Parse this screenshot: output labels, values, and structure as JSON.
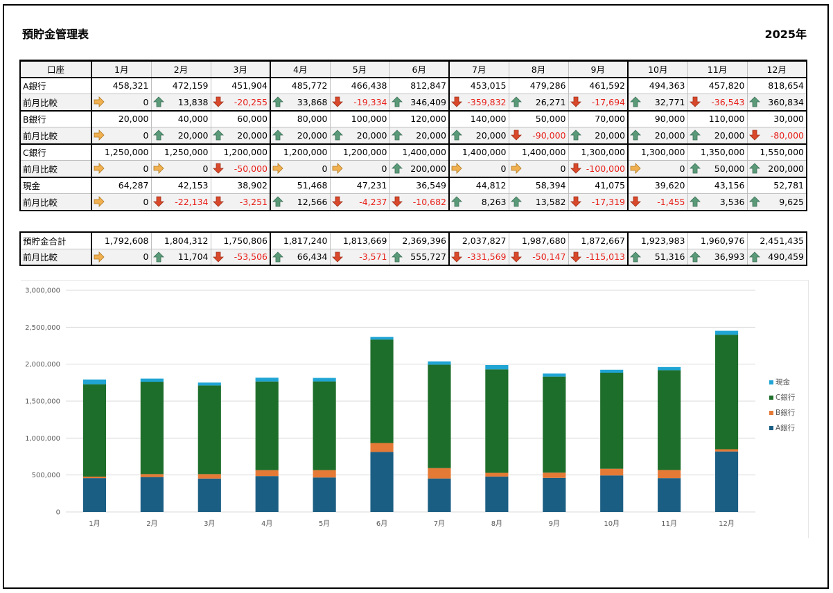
{
  "title": "預貯金管理表",
  "year": "2025年",
  "header": {
    "account_col": "口座",
    "months": [
      "1月",
      "2月",
      "3月",
      "4月",
      "5月",
      "6月",
      "7月",
      "8月",
      "9月",
      "10月",
      "11月",
      "12月"
    ]
  },
  "diff_label": "前月比較",
  "accounts": [
    {
      "name": "A銀行",
      "values": [
        "458,321",
        "472,159",
        "451,904",
        "485,772",
        "466,438",
        "812,847",
        "453,015",
        "479,286",
        "461,592",
        "494,363",
        "457,820",
        "818,654"
      ],
      "diffs": [
        "0",
        "13,838",
        "-20,255",
        "33,868",
        "-19,334",
        "346,409",
        "-359,832",
        "26,271",
        "-17,694",
        "32,771",
        "-36,543",
        "360,834"
      ],
      "dirs": [
        "flat",
        "up",
        "down",
        "up",
        "down",
        "up",
        "down",
        "up",
        "down",
        "up",
        "down",
        "up"
      ]
    },
    {
      "name": "B銀行",
      "values": [
        "20,000",
        "40,000",
        "60,000",
        "80,000",
        "100,000",
        "120,000",
        "140,000",
        "50,000",
        "70,000",
        "90,000",
        "110,000",
        "30,000"
      ],
      "diffs": [
        "0",
        "20,000",
        "20,000",
        "20,000",
        "20,000",
        "20,000",
        "20,000",
        "-90,000",
        "20,000",
        "20,000",
        "20,000",
        "-80,000"
      ],
      "dirs": [
        "flat",
        "up",
        "up",
        "up",
        "up",
        "up",
        "up",
        "down",
        "up",
        "up",
        "up",
        "down"
      ]
    },
    {
      "name": "C銀行",
      "values": [
        "1,250,000",
        "1,250,000",
        "1,200,000",
        "1,200,000",
        "1,200,000",
        "1,400,000",
        "1,400,000",
        "1,400,000",
        "1,300,000",
        "1,300,000",
        "1,350,000",
        "1,550,000"
      ],
      "diffs": [
        "0",
        "0",
        "-50,000",
        "0",
        "0",
        "200,000",
        "0",
        "0",
        "-100,000",
        "0",
        "50,000",
        "200,000"
      ],
      "dirs": [
        "flat",
        "flat",
        "down",
        "flat",
        "flat",
        "up",
        "flat",
        "flat",
        "down",
        "flat",
        "up",
        "up"
      ]
    },
    {
      "name": "現金",
      "values": [
        "64,287",
        "42,153",
        "38,902",
        "51,468",
        "47,231",
        "36,549",
        "44,812",
        "58,394",
        "41,075",
        "39,620",
        "43,156",
        "52,781"
      ],
      "diffs": [
        "0",
        "-22,134",
        "-3,251",
        "12,566",
        "-4,237",
        "-10,682",
        "8,263",
        "13,582",
        "-17,319",
        "-1,455",
        "3,536",
        "9,625"
      ],
      "dirs": [
        "flat",
        "down",
        "down",
        "up",
        "down",
        "down",
        "up",
        "up",
        "down",
        "down",
        "up",
        "up"
      ]
    }
  ],
  "total": {
    "name": "預貯金合計",
    "values": [
      "1,792,608",
      "1,804,312",
      "1,750,806",
      "1,817,240",
      "1,813,669",
      "2,369,396",
      "2,037,827",
      "1,987,680",
      "1,872,667",
      "1,923,983",
      "1,960,976",
      "2,451,435"
    ],
    "diffs": [
      "0",
      "11,704",
      "-53,506",
      "66,434",
      "-3,571",
      "555,727",
      "-331,569",
      "-50,147",
      "-115,013",
      "51,316",
      "36,993",
      "490,459"
    ],
    "dirs": [
      "flat",
      "up",
      "down",
      "up",
      "down",
      "up",
      "down",
      "down",
      "down",
      "up",
      "up",
      "up"
    ]
  },
  "icons": {
    "up": "up-arrow-icon",
    "down": "down-arrow-icon",
    "flat": "right-arrow-icon"
  },
  "colors": {
    "up": "#5a9a78",
    "down": "#d9482a",
    "flat": "#f0b050",
    "negative_text": "#e8201a"
  },
  "chart_data": {
    "type": "bar",
    "stacked": true,
    "categories": [
      "1月",
      "2月",
      "3月",
      "4月",
      "5月",
      "6月",
      "7月",
      "8月",
      "9月",
      "10月",
      "11月",
      "12月"
    ],
    "series": [
      {
        "name": "A銀行",
        "color": "#1b5e83",
        "values": [
          458321,
          472159,
          451904,
          485772,
          466438,
          812847,
          453015,
          479286,
          461592,
          494363,
          457820,
          818654
        ]
      },
      {
        "name": "B銀行",
        "color": "#e57a36",
        "values": [
          20000,
          40000,
          60000,
          80000,
          100000,
          120000,
          140000,
          50000,
          70000,
          90000,
          110000,
          30000
        ]
      },
      {
        "name": "C銀行",
        "color": "#1e6e2b",
        "values": [
          1250000,
          1250000,
          1200000,
          1200000,
          1200000,
          1400000,
          1400000,
          1400000,
          1300000,
          1300000,
          1350000,
          1550000
        ]
      },
      {
        "name": "現金",
        "color": "#1fa4d4",
        "values": [
          64287,
          42153,
          38902,
          51468,
          47231,
          36549,
          44812,
          58394,
          41075,
          39620,
          43156,
          52781
        ]
      }
    ],
    "yticks": [
      "0",
      "500,000",
      "1,000,000",
      "1,500,000",
      "2,000,000",
      "2,500,000",
      "3,000,000"
    ],
    "ylim": [
      0,
      3000000
    ],
    "grid": true,
    "legend": "right"
  }
}
